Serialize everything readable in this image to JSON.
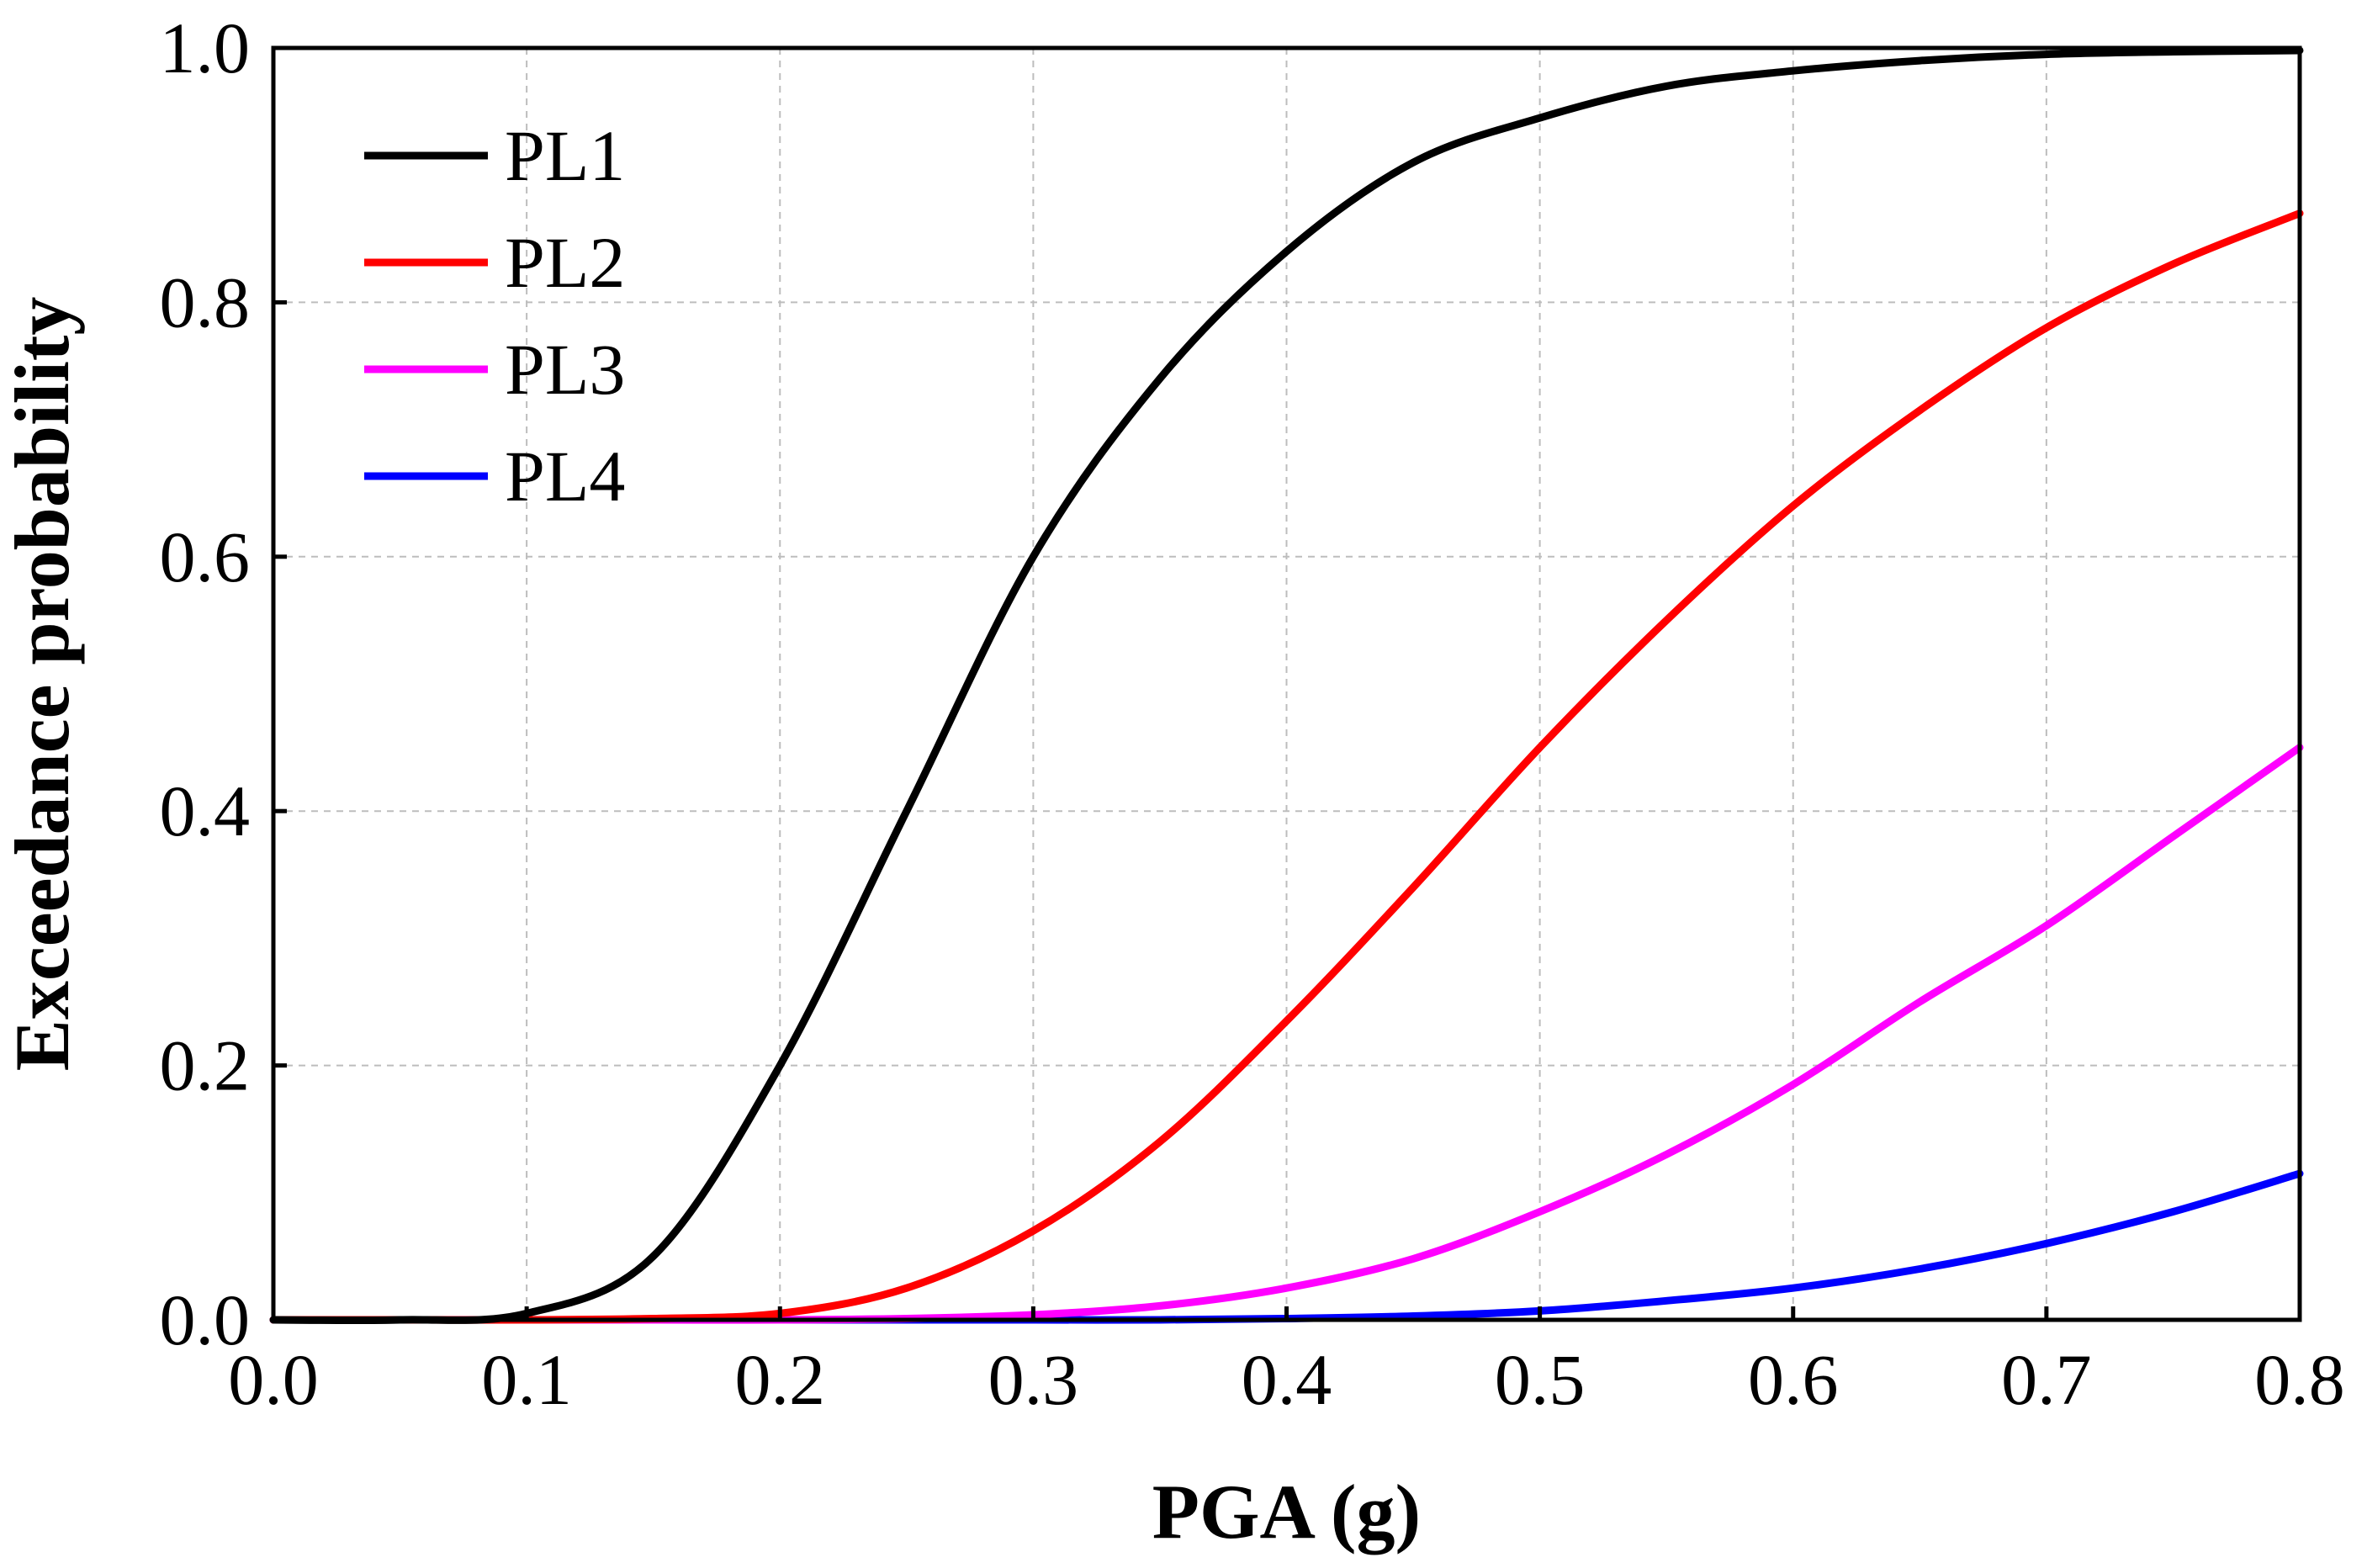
{
  "chart_data": {
    "type": "line",
    "title": "",
    "xlabel": "PGA (g)",
    "ylabel": "Exceedance probability",
    "xlim": [
      0.0,
      0.8
    ],
    "ylim": [
      0.0,
      1.0
    ],
    "grid": true,
    "legend_position": "top-left",
    "x_ticks": [
      "0.0",
      "0.1",
      "0.2",
      "0.3",
      "0.4",
      "0.5",
      "0.6",
      "0.7",
      "0.8"
    ],
    "y_ticks": [
      "0.0",
      "0.2",
      "0.4",
      "0.6",
      "0.8",
      "1.0"
    ],
    "x": [
      0.0,
      0.05,
      0.1,
      0.15,
      0.2,
      0.25,
      0.3,
      0.35,
      0.4,
      0.45,
      0.5,
      0.55,
      0.6,
      0.65,
      0.7,
      0.75,
      0.8
    ],
    "series": [
      {
        "name": "PL1",
        "color": "#000000",
        "values": [
          0.0,
          0.0,
          0.005,
          0.05,
          0.2,
          0.4,
          0.6,
          0.74,
          0.84,
          0.91,
          0.945,
          0.97,
          0.982,
          0.99,
          0.995,
          0.997,
          0.998
        ]
      },
      {
        "name": "PL2",
        "color": "#ff0000",
        "values": [
          0.0,
          0.0,
          0.0,
          0.001,
          0.005,
          0.025,
          0.07,
          0.14,
          0.235,
          0.34,
          0.45,
          0.55,
          0.64,
          0.715,
          0.78,
          0.83,
          0.87
        ]
      },
      {
        "name": "PL3",
        "color": "#ff00ff",
        "values": [
          0.0,
          0.0,
          0.0,
          0.0,
          0.0,
          0.001,
          0.004,
          0.011,
          0.025,
          0.048,
          0.085,
          0.13,
          0.185,
          0.25,
          0.31,
          0.38,
          0.45
        ]
      },
      {
        "name": "PL4",
        "color": "#0000ff",
        "values": [
          0.0,
          0.0,
          0.0,
          0.0,
          0.0,
          0.0,
          0.0,
          0.0,
          0.001,
          0.003,
          0.007,
          0.015,
          0.025,
          0.04,
          0.06,
          0.085,
          0.115
        ]
      }
    ]
  }
}
